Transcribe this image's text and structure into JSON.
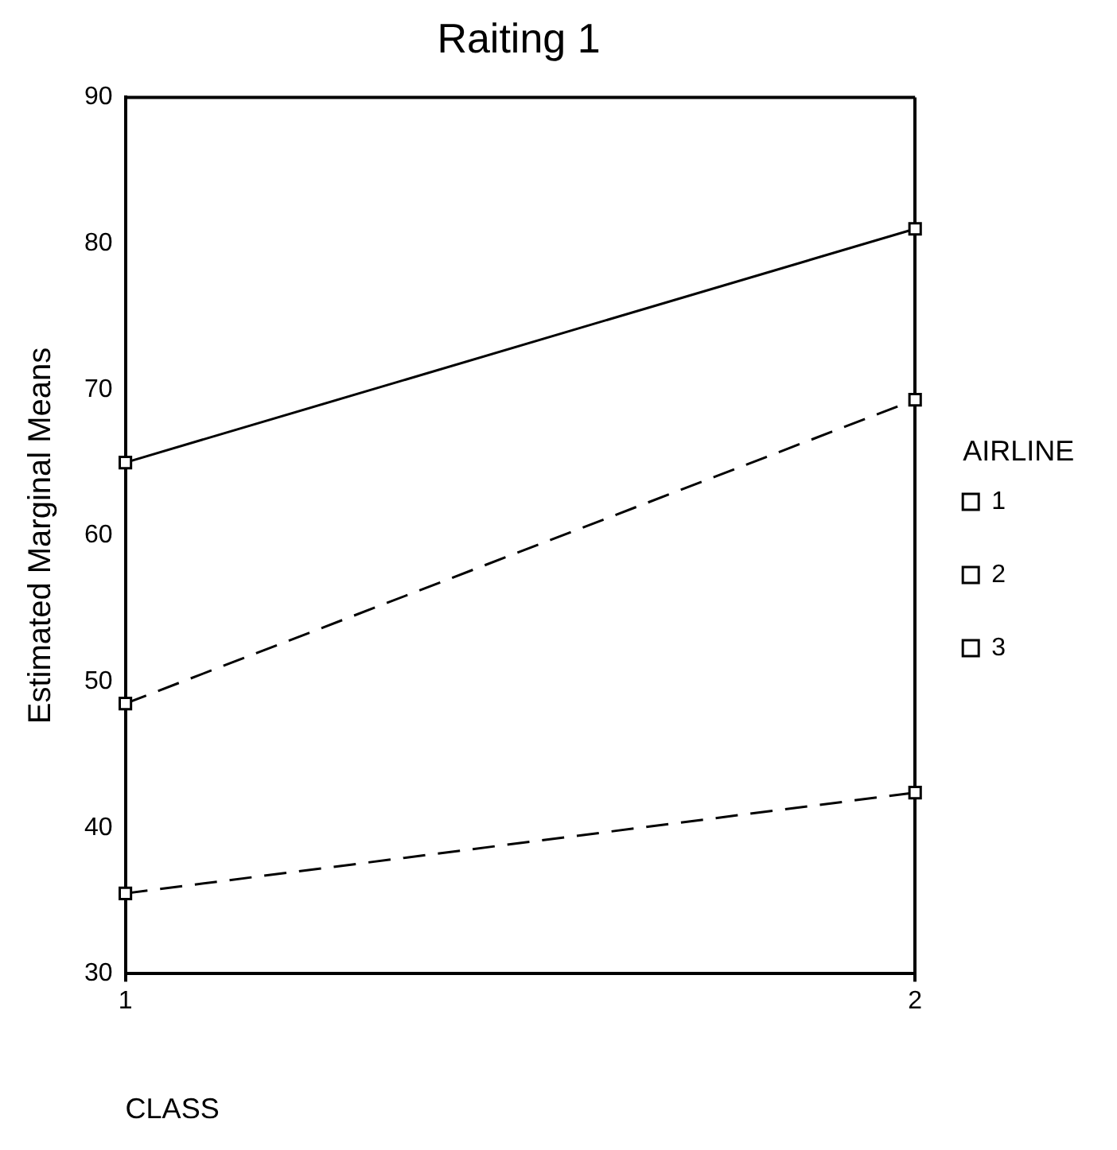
{
  "chart_data": {
    "type": "line",
    "title": "Raiting 1",
    "xlabel": "CLASS",
    "ylabel": "Estimated Marginal Means",
    "legend_title": "AIRLINE",
    "categories": [
      "1",
      "2"
    ],
    "series": [
      {
        "name": "1",
        "color": "#000000",
        "values": [
          35.5,
          42.4
        ],
        "line_style": "dashed"
      },
      {
        "name": "2",
        "color": "#000000",
        "values": [
          48.5,
          69.3
        ],
        "line_style": "dashed"
      },
      {
        "name": "3",
        "color": "#000000",
        "values": [
          65,
          81
        ],
        "line_style": "solid"
      }
    ],
    "ylim": [
      30,
      90
    ],
    "yticks": [
      30,
      40,
      50,
      60,
      70,
      80,
      90
    ],
    "grid": "x",
    "legend": "right",
    "marker": "square"
  }
}
